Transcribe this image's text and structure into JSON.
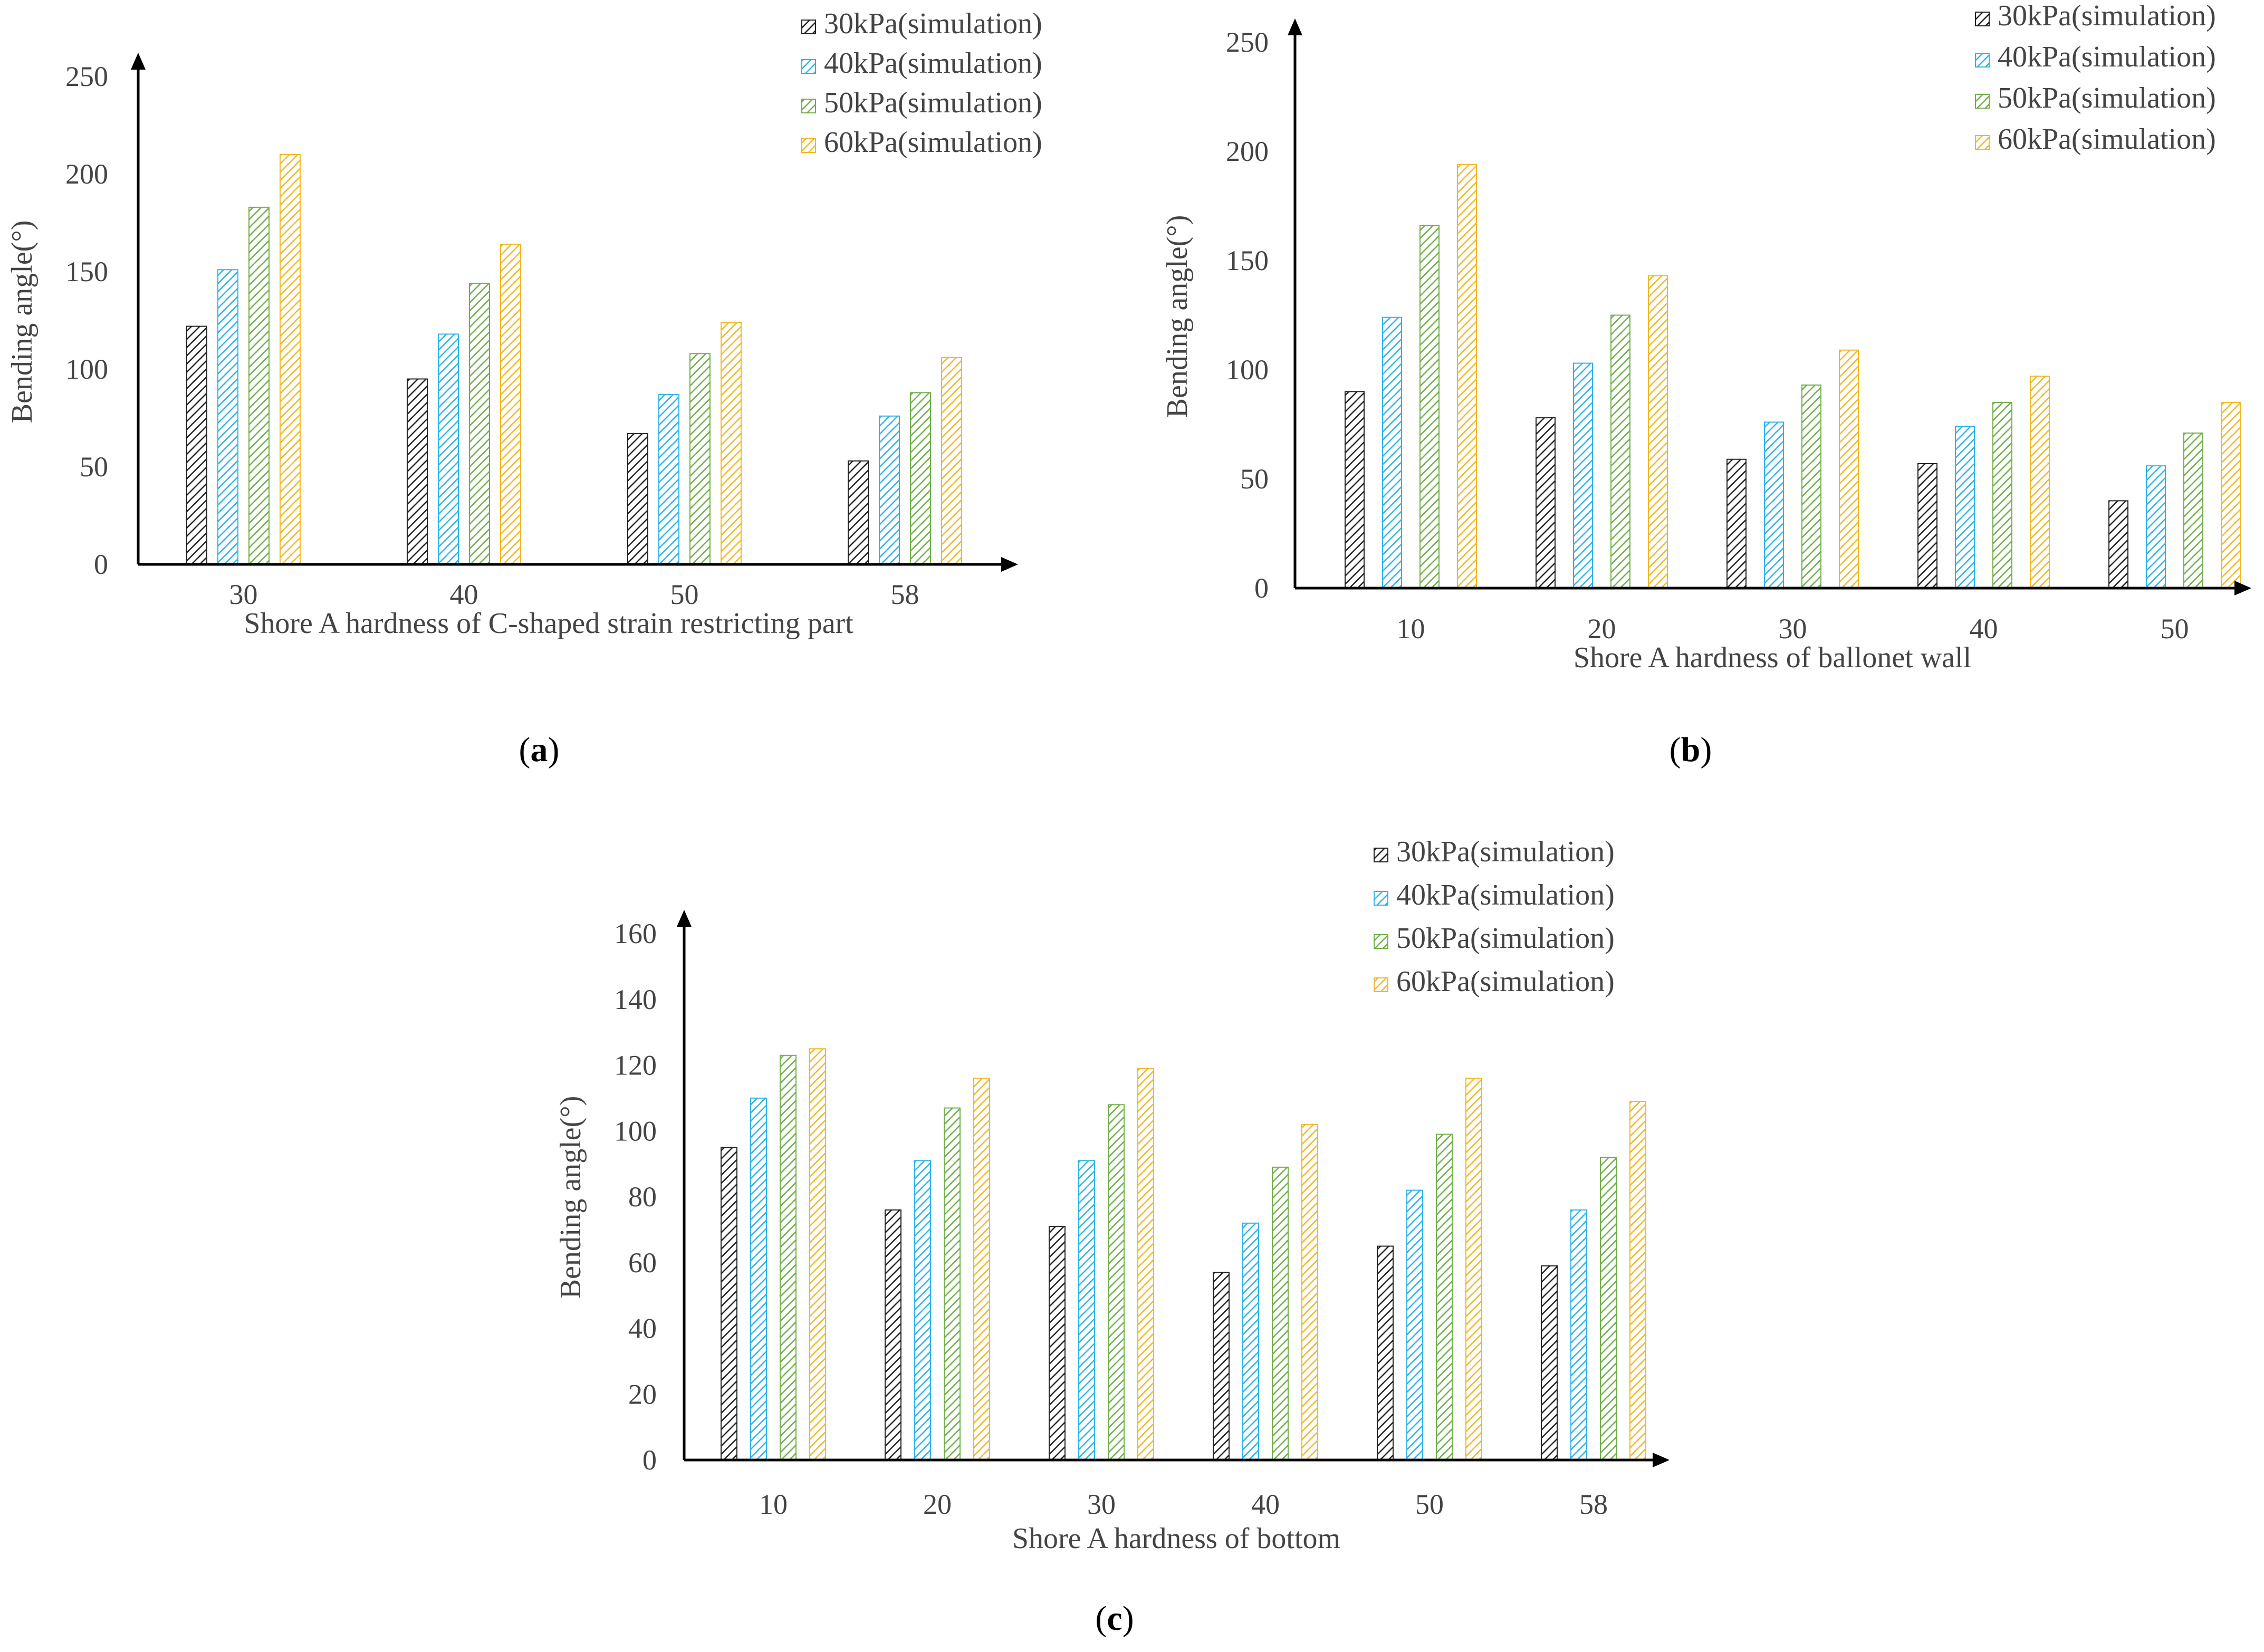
{
  "colors": {
    "axis": "#000000",
    "text": "#444444",
    "series_colors": [
      "#222222",
      "#2FB3EA",
      "#6FAF4A",
      "#F2B824"
    ]
  },
  "chart_data": [
    {
      "type": "bar",
      "panel_label": "a",
      "categories": [
        "30",
        "40",
        "50",
        "58"
      ],
      "series": [
        {
          "name": "30kPa(simulation)",
          "values": [
            122,
            95,
            67,
            53
          ]
        },
        {
          "name": "40kPa(simulation)",
          "values": [
            151,
            118,
            87,
            76
          ]
        },
        {
          "name": "50kPa(simulation)",
          "values": [
            183,
            144,
            108,
            88
          ]
        },
        {
          "name": "60kPa(simulation)",
          "values": [
            210,
            164,
            124,
            106
          ]
        }
      ],
      "xlabel": "Shore A hardness of C-shaped strain restricting part",
      "ylabel": "Bending angle(°)",
      "ylim": [
        0,
        250
      ],
      "yticks": [
        0,
        50,
        100,
        150,
        200,
        250
      ],
      "grid": false,
      "legend": "top-right"
    },
    {
      "type": "bar",
      "panel_label": "b",
      "categories": [
        "10",
        "20",
        "30",
        "40",
        "50"
      ],
      "series": [
        {
          "name": "30kPa(simulation)",
          "values": [
            90,
            78,
            59,
            57,
            40
          ]
        },
        {
          "name": "40kPa(simulation)",
          "values": [
            124,
            103,
            76,
            74,
            56
          ]
        },
        {
          "name": "50kPa(simulation)",
          "values": [
            166,
            125,
            93,
            85,
            71
          ]
        },
        {
          "name": "60kPa(simulation)",
          "values": [
            194,
            143,
            109,
            97,
            85
          ]
        }
      ],
      "xlabel": "Shore A hardness of ballonet wall",
      "ylabel": "Bending angle(°)",
      "ylim": [
        0,
        250
      ],
      "yticks": [
        0,
        50,
        100,
        150,
        200,
        250
      ],
      "grid": false,
      "legend": "top-right"
    },
    {
      "type": "bar",
      "panel_label": "c",
      "categories": [
        "10",
        "20",
        "30",
        "40",
        "50",
        "58"
      ],
      "series": [
        {
          "name": "30kPa(simulation)",
          "values": [
            95,
            76,
            71,
            57,
            65,
            59
          ]
        },
        {
          "name": "40kPa(simulation)",
          "values": [
            110,
            91,
            91,
            72,
            82,
            76
          ]
        },
        {
          "name": "50kPa(simulation)",
          "values": [
            123,
            107,
            108,
            89,
            99,
            92
          ]
        },
        {
          "name": "60kPa(simulation)",
          "values": [
            125,
            116,
            119,
            102,
            116,
            109
          ]
        }
      ],
      "xlabel": "Shore A hardness of bottom",
      "ylabel": "Bending angle(°)",
      "ylim": [
        0,
        160
      ],
      "yticks": [
        0,
        20,
        40,
        60,
        80,
        100,
        120,
        140,
        160
      ],
      "grid": false,
      "legend": "top-right"
    }
  ]
}
